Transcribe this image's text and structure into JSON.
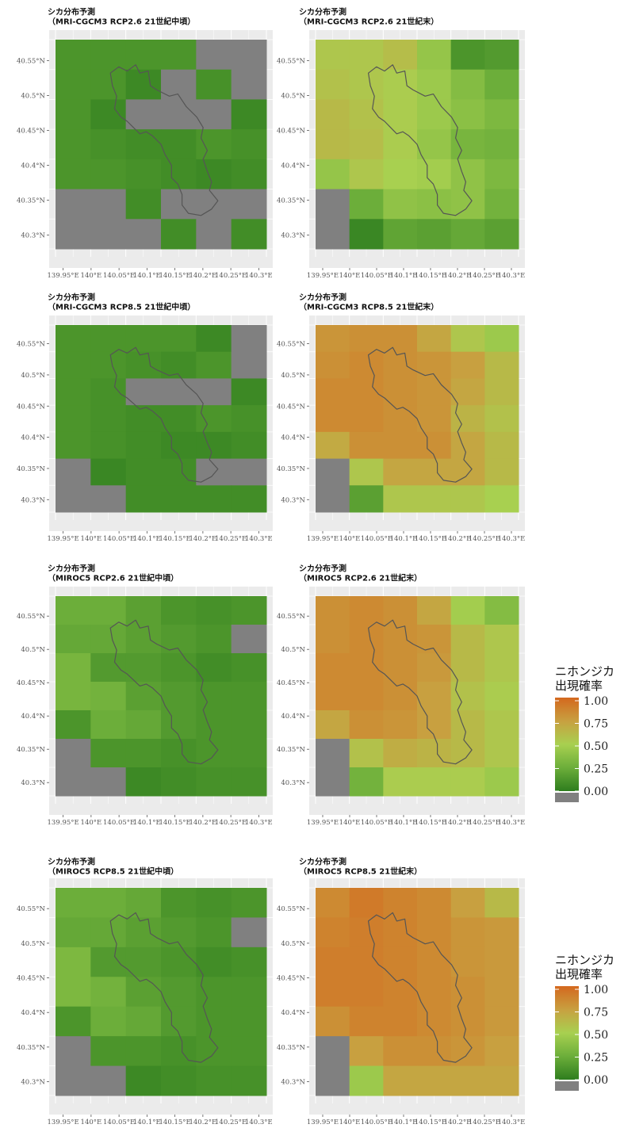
{
  "chart_data": {
    "type": "heatmap",
    "x_ticks": [
      "139.95°E",
      "140°E",
      "140.05°E",
      "140.1°E",
      "140.15°E",
      "140.2°E",
      "140.25°E",
      "140.3°E"
    ],
    "y_ticks": [
      "40.55°N",
      "40.5°N",
      "40.45°N",
      "40.4°N",
      "40.35°N",
      "40.3°N"
    ],
    "na_color": "#808080",
    "panel_bg": "#ebebeb",
    "gradient_colors": [
      {
        "v": 0.0,
        "color": "#2e7d1e"
      },
      {
        "v": 0.25,
        "color": "#6cae3a"
      },
      {
        "v": 0.5,
        "color": "#a8d050"
      },
      {
        "v": 0.75,
        "color": "#c8a040"
      },
      {
        "v": 1.0,
        "color": "#d4681e"
      }
    ],
    "legends": [
      {
        "title_line1": "ニホンジカ",
        "title_line2": "出現確率",
        "ticks": [
          "1.00",
          "0.75",
          "0.50",
          "0.25",
          "0.00"
        ]
      },
      {
        "title_line1": "ニホンジカ",
        "title_line2": "出現確率",
        "ticks": [
          "1.00",
          "0.75",
          "0.50",
          "0.25",
          "0.00"
        ]
      }
    ],
    "maps": [
      {
        "title1": "シカ分布予測",
        "title2": "（MRI-CGCM3 RCP2.6 21世紀中頃）",
        "grid": [
          [
            0.12,
            0.12,
            0.12,
            0.12,
            null,
            null
          ],
          [
            0.12,
            0.12,
            0.06,
            null,
            0.1,
            null
          ],
          [
            0.12,
            0.06,
            null,
            null,
            null,
            0.06
          ],
          [
            0.12,
            0.1,
            0.08,
            0.08,
            0.12,
            0.1
          ],
          [
            0.12,
            0.12,
            0.1,
            0.08,
            0.06,
            0.08
          ],
          [
            null,
            null,
            0.08,
            null,
            null,
            null
          ],
          [
            null,
            null,
            null,
            0.08,
            null,
            0.08
          ]
        ]
      },
      {
        "title1": "シカ分布予測",
        "title2": "（MRI-CGCM3 RCP2.6 21世紀末）",
        "grid": [
          [
            0.55,
            0.55,
            0.6,
            0.42,
            0.12,
            0.15
          ],
          [
            0.58,
            0.55,
            0.52,
            0.45,
            0.35,
            0.25
          ],
          [
            0.62,
            0.58,
            0.52,
            0.45,
            0.38,
            0.32
          ],
          [
            0.62,
            0.6,
            0.52,
            0.42,
            0.3,
            0.28
          ],
          [
            0.42,
            0.55,
            0.5,
            0.48,
            0.4,
            0.32
          ],
          [
            null,
            0.25,
            0.4,
            0.38,
            0.4,
            0.28
          ],
          [
            null,
            0.05,
            0.2,
            0.18,
            0.22,
            0.18
          ]
        ]
      },
      {
        "title1": "シカ分布予測",
        "title2": "（MRI-CGCM3 RCP8.5 21世紀中頃）",
        "grid": [
          [
            0.12,
            0.12,
            0.12,
            0.12,
            0.06,
            null
          ],
          [
            0.12,
            0.12,
            0.1,
            0.08,
            0.12,
            null
          ],
          [
            0.12,
            0.1,
            null,
            null,
            null,
            0.06
          ],
          [
            0.12,
            0.1,
            0.08,
            0.08,
            0.12,
            0.1
          ],
          [
            0.12,
            0.1,
            0.08,
            0.06,
            0.06,
            0.08
          ],
          [
            null,
            0.05,
            0.08,
            0.08,
            null,
            null
          ],
          [
            null,
            null,
            0.08,
            0.08,
            0.08,
            0.08
          ]
        ]
      },
      {
        "title1": "シカ分布予測",
        "title2": "（MRI-CGCM3 RCP8.5 21世紀末）",
        "grid": [
          [
            0.8,
            0.82,
            0.82,
            0.72,
            0.55,
            0.45
          ],
          [
            0.82,
            0.85,
            0.82,
            0.8,
            0.75,
            0.62
          ],
          [
            0.85,
            0.85,
            0.82,
            0.8,
            0.72,
            0.62
          ],
          [
            0.85,
            0.85,
            0.82,
            0.8,
            0.65,
            0.58
          ],
          [
            0.7,
            0.82,
            0.82,
            0.82,
            0.72,
            0.62
          ],
          [
            null,
            0.55,
            0.72,
            0.72,
            0.72,
            0.62
          ],
          [
            null,
            0.18,
            0.55,
            0.55,
            0.55,
            0.5
          ]
        ]
      },
      {
        "title1": "シカ分布予測",
        "title2": "（MIROC5 RCP2.6 21世紀中頃）",
        "grid": [
          [
            0.25,
            0.25,
            0.18,
            0.12,
            0.1,
            0.12
          ],
          [
            0.22,
            0.22,
            0.18,
            0.15,
            0.12,
            null
          ],
          [
            0.3,
            0.15,
            0.15,
            0.12,
            0.08,
            0.1
          ],
          [
            0.3,
            0.28,
            0.18,
            0.15,
            0.12,
            0.12
          ],
          [
            0.12,
            0.25,
            0.22,
            0.15,
            0.12,
            0.12
          ],
          [
            null,
            0.12,
            0.12,
            0.1,
            0.12,
            0.12
          ],
          [
            null,
            null,
            0.06,
            0.08,
            0.1,
            0.1
          ]
        ]
      },
      {
        "title1": "シカ分布予測",
        "title2": "（MIROC5 RCP2.6 21世紀末）",
        "grid": [
          [
            0.82,
            0.85,
            0.82,
            0.72,
            0.48,
            0.35
          ],
          [
            0.82,
            0.85,
            0.82,
            0.8,
            0.62,
            0.55
          ],
          [
            0.85,
            0.85,
            0.82,
            0.78,
            0.62,
            0.55
          ],
          [
            0.85,
            0.85,
            0.82,
            0.75,
            0.58,
            0.52
          ],
          [
            0.72,
            0.82,
            0.8,
            0.75,
            0.62,
            0.55
          ],
          [
            null,
            0.58,
            0.68,
            0.65,
            0.62,
            0.55
          ],
          [
            null,
            0.28,
            0.52,
            0.52,
            0.52,
            0.45
          ]
        ]
      },
      {
        "title1": "シカ分布予測",
        "title2": "（MIROC5 RCP8.5 21世紀中頃）",
        "grid": [
          [
            0.25,
            0.25,
            0.22,
            0.12,
            0.1,
            0.12
          ],
          [
            0.22,
            0.22,
            0.18,
            0.15,
            0.12,
            null
          ],
          [
            0.32,
            0.15,
            0.15,
            0.12,
            0.08,
            0.1
          ],
          [
            0.32,
            0.28,
            0.18,
            0.15,
            0.12,
            0.12
          ],
          [
            0.12,
            0.25,
            0.22,
            0.15,
            0.12,
            0.12
          ],
          [
            null,
            0.12,
            0.12,
            0.1,
            0.12,
            0.12
          ],
          [
            null,
            null,
            0.06,
            0.08,
            0.1,
            0.1
          ]
        ]
      },
      {
        "title1": "シカ分布予測",
        "title2": "（MIROC5 RCP8.5 21世紀末）",
        "grid": [
          [
            0.85,
            0.92,
            0.88,
            0.85,
            0.75,
            0.62
          ],
          [
            0.88,
            0.9,
            0.88,
            0.85,
            0.8,
            0.78
          ],
          [
            0.9,
            0.9,
            0.88,
            0.85,
            0.8,
            0.78
          ],
          [
            0.9,
            0.9,
            0.88,
            0.85,
            0.82,
            0.78
          ],
          [
            0.82,
            0.88,
            0.88,
            0.85,
            0.82,
            0.78
          ],
          [
            null,
            0.75,
            0.82,
            0.82,
            0.8,
            0.75
          ],
          [
            null,
            0.45,
            0.72,
            0.72,
            0.72,
            0.72
          ]
        ]
      }
    ]
  }
}
